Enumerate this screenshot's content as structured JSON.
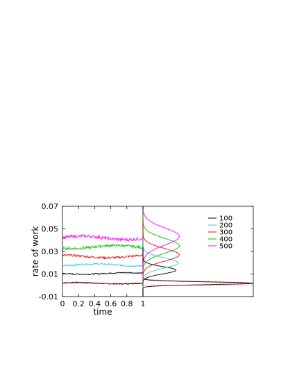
{
  "chart_data": {
    "type": "line",
    "xlabel": "time",
    "ylabel": "rate of work",
    "xlim": [
      0,
      1
    ],
    "ylim": [
      -0.01,
      0.07
    ],
    "x_ticks": [
      "0",
      "0.2",
      "0.4",
      "0.6",
      "0.8",
      "1"
    ],
    "y_ticks": [
      "-0.01",
      "0.01",
      "0.03",
      "0.05",
      "0.07"
    ],
    "legend_position": "top-right",
    "legend": [
      "100",
      "200",
      "300",
      "400",
      "500"
    ],
    "series": [
      {
        "name": "100",
        "color": "#000000",
        "mean": 0.0105,
        "mode_ratio": 1.27,
        "dist_width": 0.0032,
        "dist_amp": 0.3
      },
      {
        "name": "200",
        "color": "#33cccc",
        "mean": 0.018,
        "mode_ratio": 1.1,
        "dist_width": 0.0045,
        "dist_amp": 0.32
      },
      {
        "name": "300",
        "color": "#ff0000",
        "mean": 0.0255,
        "mode_ratio": 1.06,
        "dist_width": 0.0055,
        "dist_amp": 0.33
      },
      {
        "name": "400",
        "color": "#00bb00",
        "mean": 0.034,
        "mode_ratio": 1.03,
        "dist_width": 0.0065,
        "dist_amp": 0.33
      },
      {
        "name": "500",
        "color": "#ff00ff",
        "mean": 0.042,
        "mode_ratio": 1.03,
        "dist_width": 0.0075,
        "dist_amp": 0.33
      }
    ],
    "reference_series": [
      {
        "color": "#000000",
        "dotted": false,
        "mean": 0.0018,
        "dist_width": 0.0012,
        "dist_amp": 1.0
      },
      {
        "color": "#cc0000",
        "dotted": true,
        "mean": 0.002,
        "dist_width": 0.0013,
        "dist_amp": 0.97
      }
    ],
    "baseline": 0.0
  }
}
